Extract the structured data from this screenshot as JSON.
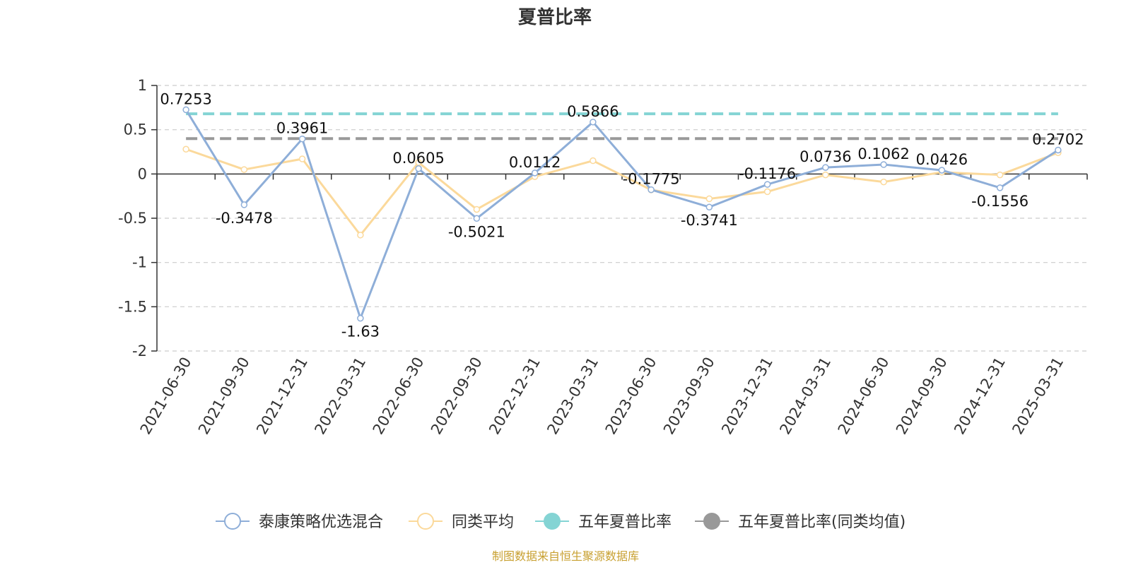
{
  "colors": {
    "fund": "#8eaed8",
    "peer": "#fbd99b",
    "five_year": "#84d4d4",
    "five_year_peer": "#999999",
    "source": "#c8a030"
  },
  "chart_data": {
    "type": "line",
    "title": "夏普比率",
    "xlabel": "",
    "ylabel": "",
    "ylim": [
      -2,
      1
    ],
    "yticks": [
      1,
      0.5,
      0,
      -0.5,
      -1,
      -1.5,
      -2
    ],
    "ytick_labels": [
      "1",
      "0.5",
      "0",
      "-0.5",
      "-1",
      "-1.5",
      "-2"
    ],
    "grid": true,
    "legend_position": "bottom",
    "categories": [
      "2021-06-30",
      "2021-09-30",
      "2021-12-31",
      "2022-03-31",
      "2022-06-30",
      "2022-09-30",
      "2022-12-31",
      "2023-03-31",
      "2023-06-30",
      "2023-09-30",
      "2023-12-31",
      "2024-03-31",
      "2024-06-30",
      "2024-09-30",
      "2024-12-31",
      "2025-03-31"
    ],
    "series": [
      {
        "name": "泰康策略优选混合",
        "values": [
          0.7253,
          -0.3478,
          0.3961,
          -1.63,
          0.0605,
          -0.5021,
          0.0112,
          0.5866,
          -0.1775,
          -0.3741,
          -0.1176,
          0.0736,
          0.1062,
          0.0426,
          -0.1556,
          0.2702
        ],
        "labels": [
          "0.7253",
          "-0.3478",
          "0.3961",
          "-1.63",
          "0.0605",
          "-0.5021",
          "0.0112",
          "0.5866",
          "-0.1775",
          "-0.3741",
          "-0.1176",
          "0.0736",
          "0.1062",
          "0.0426",
          "-0.1556",
          "0.2702"
        ]
      },
      {
        "name": "同类平均",
        "values": [
          0.28,
          0.05,
          0.17,
          -0.69,
          0.13,
          -0.4,
          -0.03,
          0.15,
          -0.18,
          -0.28,
          -0.2,
          -0.01,
          -0.09,
          0.02,
          -0.01,
          0.24
        ]
      },
      {
        "name": "五年夏普比率",
        "value": 0.68
      },
      {
        "name": "五年夏普比率(同类均值)",
        "value": 0.4
      }
    ]
  },
  "footer": {
    "source": "制图数据来自恒生聚源数据库"
  }
}
